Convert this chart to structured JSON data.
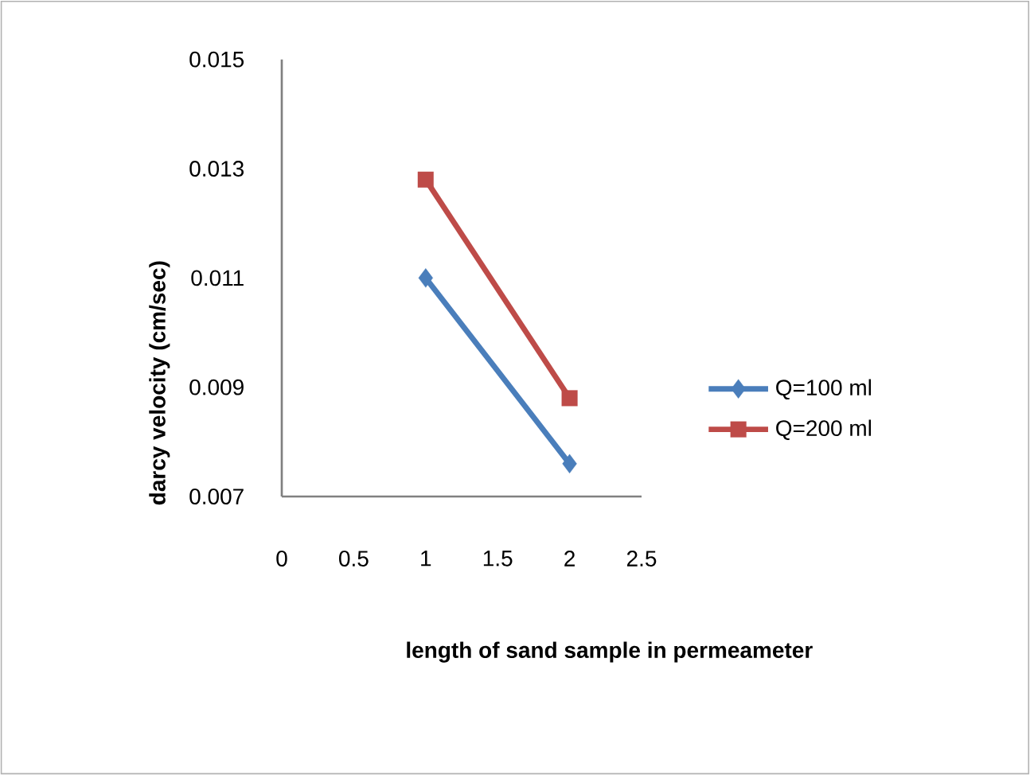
{
  "chart_data": {
    "type": "line",
    "xlabel": "length of sand sample in permeameter",
    "ylabel": "darcy velocity  (cm/sec)",
    "x": [
      1,
      2
    ],
    "series": [
      {
        "name": "Q=100 ml",
        "color": "#4a7ebb",
        "values": [
          0.011,
          0.0076
        ],
        "marker": "diamond"
      },
      {
        "name": "Q=200 ml",
        "color": "#be4b48",
        "values": [
          0.0128,
          0.0088
        ],
        "marker": "square"
      }
    ],
    "xlim": [
      0,
      2.5
    ],
    "xticks": [
      0,
      0.5,
      1,
      1.5,
      2,
      2.5
    ],
    "ylim": [
      0.007,
      0.015
    ],
    "yticks": [
      0.007,
      0.009,
      0.011,
      0.013,
      0.015
    ],
    "grid": false,
    "legend": "right",
    "line_style": "solid"
  }
}
